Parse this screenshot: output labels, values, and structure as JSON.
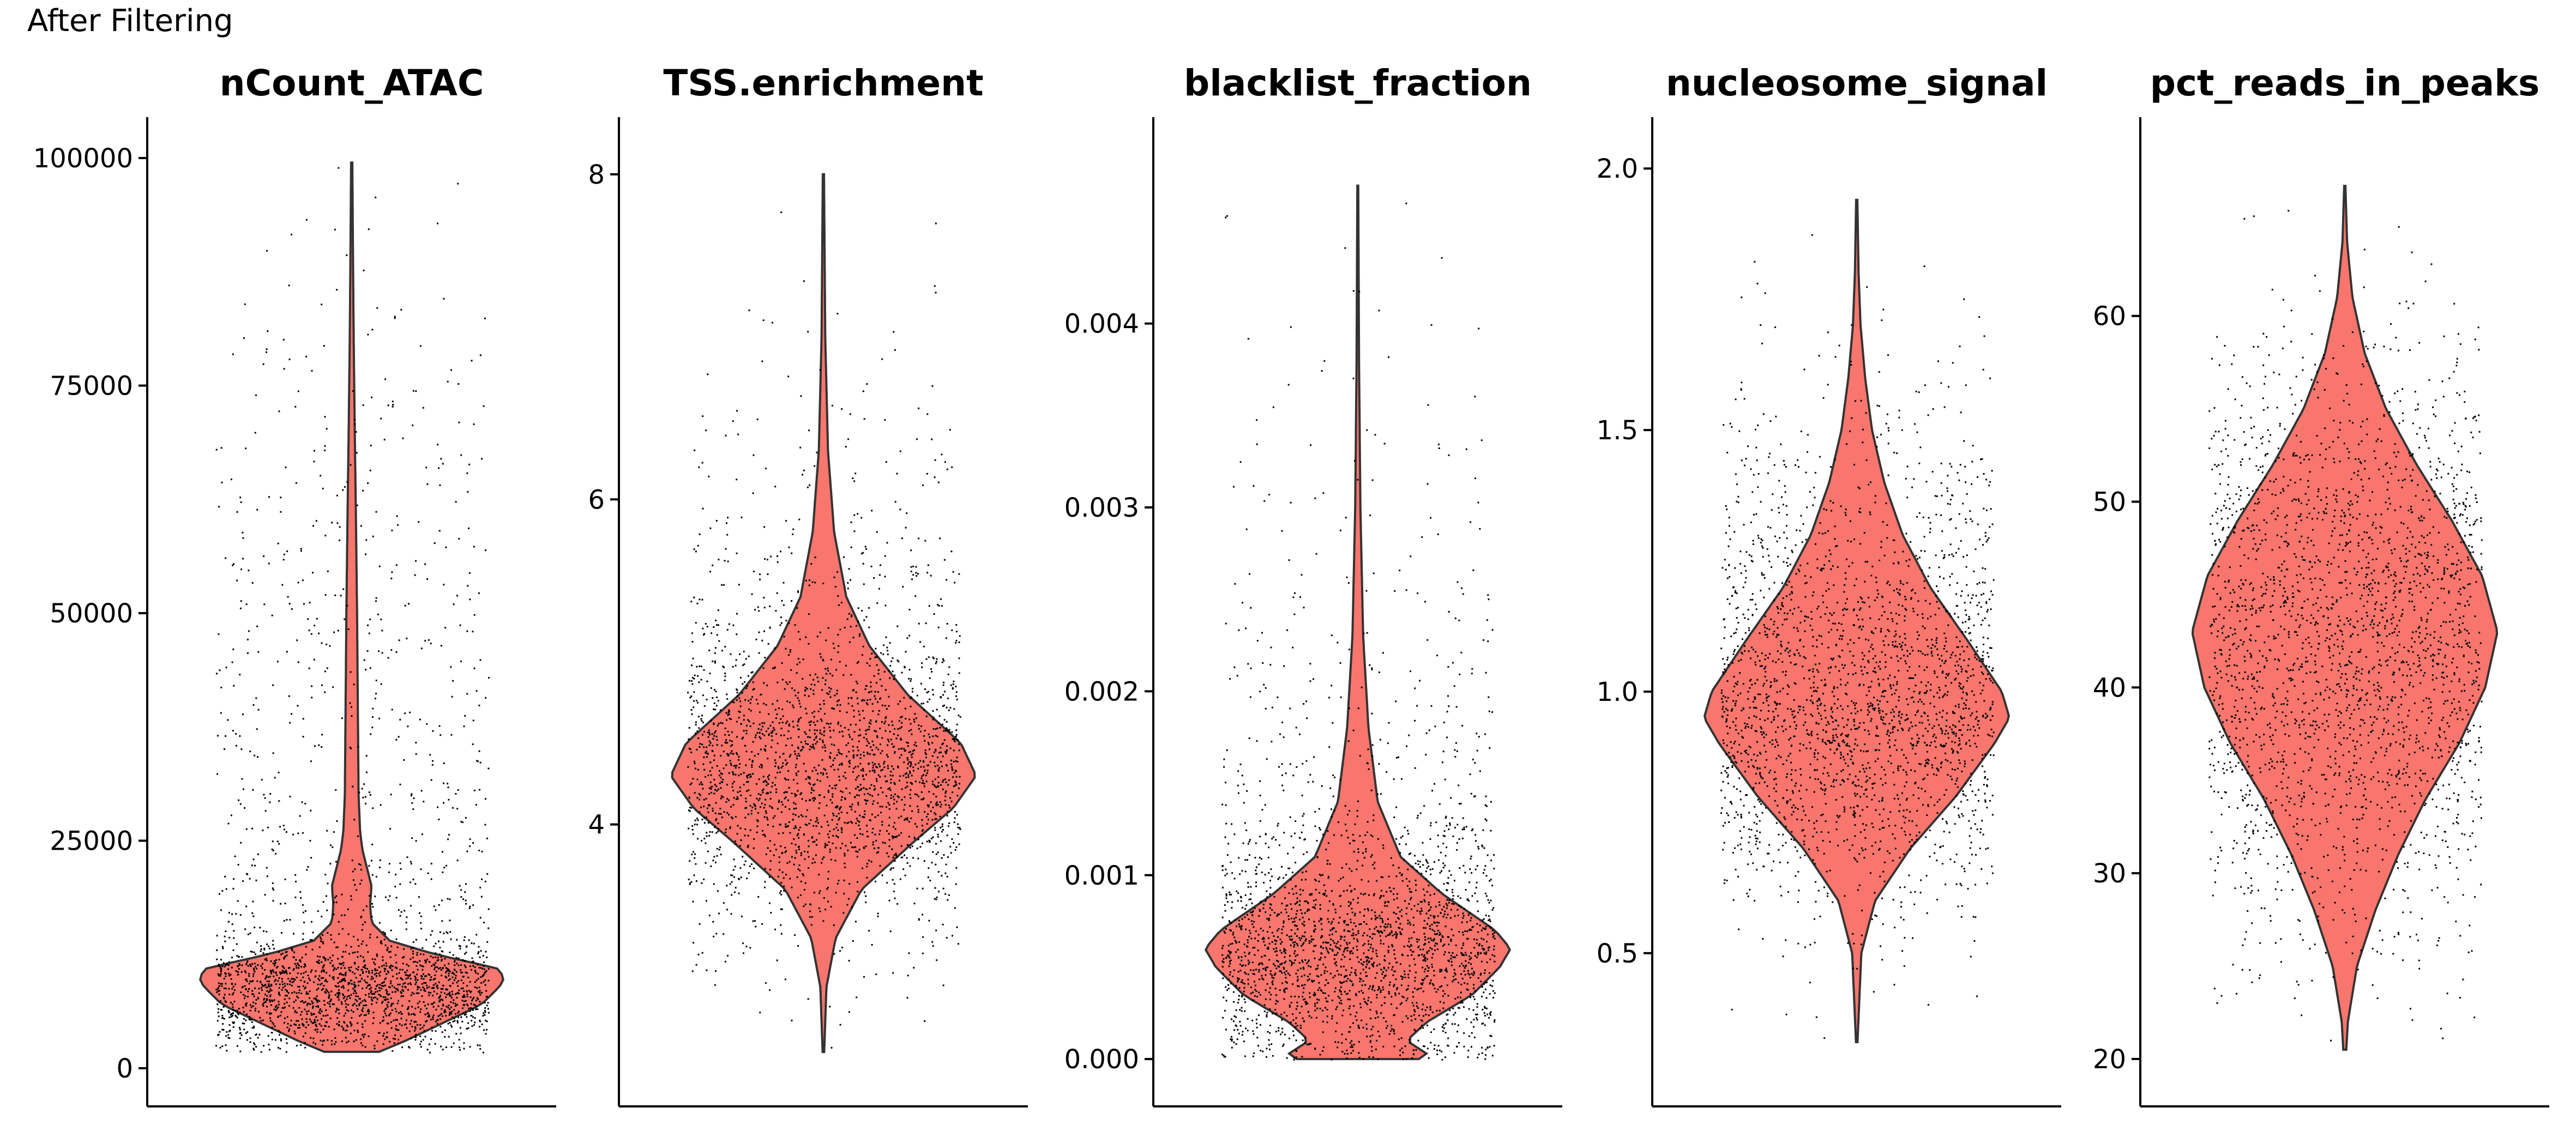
{
  "page": {
    "title": "After Filtering"
  },
  "colors": {
    "violin_fill": "#F8766D",
    "violin_stroke": "#333333",
    "point": "#000000"
  },
  "chart_data": [
    {
      "type": "violin",
      "title": "nCount_ATAC",
      "ylim": [
        0,
        100000
      ],
      "ticks": [
        0,
        25000,
        50000,
        75000,
        100000
      ],
      "tick_labels": [
        "0",
        "25000",
        "50000",
        "75000",
        "100000"
      ],
      "range": [
        1800,
        99500
      ],
      "profile": [
        [
          1800,
          0.18
        ],
        [
          3000,
          0.35
        ],
        [
          5000,
          0.6
        ],
        [
          7000,
          0.85
        ],
        [
          9000,
          0.97
        ],
        [
          10000,
          1.0
        ],
        [
          11000,
          0.95
        ],
        [
          12500,
          0.55
        ],
        [
          14000,
          0.25
        ],
        [
          16000,
          0.13
        ],
        [
          18000,
          0.12
        ],
        [
          20000,
          0.13
        ],
        [
          22000,
          0.1
        ],
        [
          24000,
          0.07
        ],
        [
          26000,
          0.055
        ],
        [
          30000,
          0.045
        ],
        [
          40000,
          0.04
        ],
        [
          50000,
          0.035
        ],
        [
          60000,
          0.028
        ],
        [
          70000,
          0.02
        ],
        [
          80000,
          0.013
        ],
        [
          90000,
          0.008
        ],
        [
          99500,
          0.004
        ]
      ]
    },
    {
      "type": "violin",
      "title": "TSS.enrichment",
      "ylim": [
        2.5,
        8.1
      ],
      "ticks": [
        4,
        6,
        8
      ],
      "tick_labels": [
        "4",
        "6",
        "8"
      ],
      "range": [
        2.6,
        8.0
      ],
      "profile": [
        [
          2.6,
          0.005
        ],
        [
          3.0,
          0.02
        ],
        [
          3.3,
          0.08
        ],
        [
          3.6,
          0.25
        ],
        [
          3.9,
          0.6
        ],
        [
          4.1,
          0.85
        ],
        [
          4.3,
          1.0
        ],
        [
          4.5,
          0.9
        ],
        [
          4.8,
          0.55
        ],
        [
          5.1,
          0.3
        ],
        [
          5.4,
          0.15
        ],
        [
          5.8,
          0.07
        ],
        [
          6.3,
          0.03
        ],
        [
          7.0,
          0.012
        ],
        [
          8.0,
          0.004
        ]
      ]
    },
    {
      "type": "violin",
      "title": "blacklist_fraction",
      "ylim": [
        -5e-05,
        0.0049
      ],
      "ticks": [
        0,
        0.001,
        0.002,
        0.003,
        0.004
      ],
      "tick_labels": [
        "0.000",
        "0.001",
        "0.002",
        "0.003",
        "0.004"
      ],
      "range": [
        0,
        0.00475
      ],
      "profile": [
        [
          0,
          0.4
        ],
        [
          3e-05,
          0.45
        ],
        [
          0.0001,
          0.32
        ],
        [
          0.0002,
          0.45
        ],
        [
          0.00035,
          0.75
        ],
        [
          0.0005,
          0.93
        ],
        [
          0.0006,
          1.0
        ],
        [
          0.0007,
          0.9
        ],
        [
          0.0009,
          0.55
        ],
        [
          0.0011,
          0.28
        ],
        [
          0.0014,
          0.13
        ],
        [
          0.0018,
          0.07
        ],
        [
          0.0023,
          0.035
        ],
        [
          0.003,
          0.017
        ],
        [
          0.0038,
          0.008
        ],
        [
          0.00475,
          0.003
        ]
      ]
    },
    {
      "type": "violin",
      "title": "nucleosome_signal",
      "ylim": [
        0.28,
        2.02
      ],
      "ticks": [
        0.5,
        1.0,
        1.5,
        2.0
      ],
      "tick_labels": [
        "0.5",
        "1.0",
        "1.5",
        "2.0"
      ],
      "range": [
        0.33,
        1.94
      ],
      "profile": [
        [
          0.33,
          0.005
        ],
        [
          0.5,
          0.03
        ],
        [
          0.6,
          0.12
        ],
        [
          0.7,
          0.35
        ],
        [
          0.8,
          0.65
        ],
        [
          0.9,
          0.9
        ],
        [
          0.95,
          1.0
        ],
        [
          1.0,
          0.95
        ],
        [
          1.1,
          0.72
        ],
        [
          1.2,
          0.48
        ],
        [
          1.3,
          0.3
        ],
        [
          1.4,
          0.18
        ],
        [
          1.5,
          0.1
        ],
        [
          1.6,
          0.055
        ],
        [
          1.7,
          0.025
        ],
        [
          1.8,
          0.012
        ],
        [
          1.94,
          0.004
        ]
      ]
    },
    {
      "type": "violin",
      "title": "pct_reads_in_peaks",
      "ylim": [
        19.5,
        68.5
      ],
      "ticks": [
        20,
        30,
        40,
        50,
        60
      ],
      "tick_labels": [
        "20",
        "30",
        "40",
        "50",
        "60"
      ],
      "range": [
        20.5,
        67
      ],
      "profile": [
        [
          20.5,
          0.01
        ],
        [
          22,
          0.02
        ],
        [
          25,
          0.08
        ],
        [
          28,
          0.2
        ],
        [
          31,
          0.35
        ],
        [
          34,
          0.53
        ],
        [
          37,
          0.75
        ],
        [
          40,
          0.92
        ],
        [
          43,
          1.0
        ],
        [
          46,
          0.9
        ],
        [
          49,
          0.7
        ],
        [
          52,
          0.47
        ],
        [
          55,
          0.27
        ],
        [
          58,
          0.13
        ],
        [
          61,
          0.05
        ],
        [
          64,
          0.015
        ],
        [
          67,
          0.004
        ]
      ]
    }
  ]
}
